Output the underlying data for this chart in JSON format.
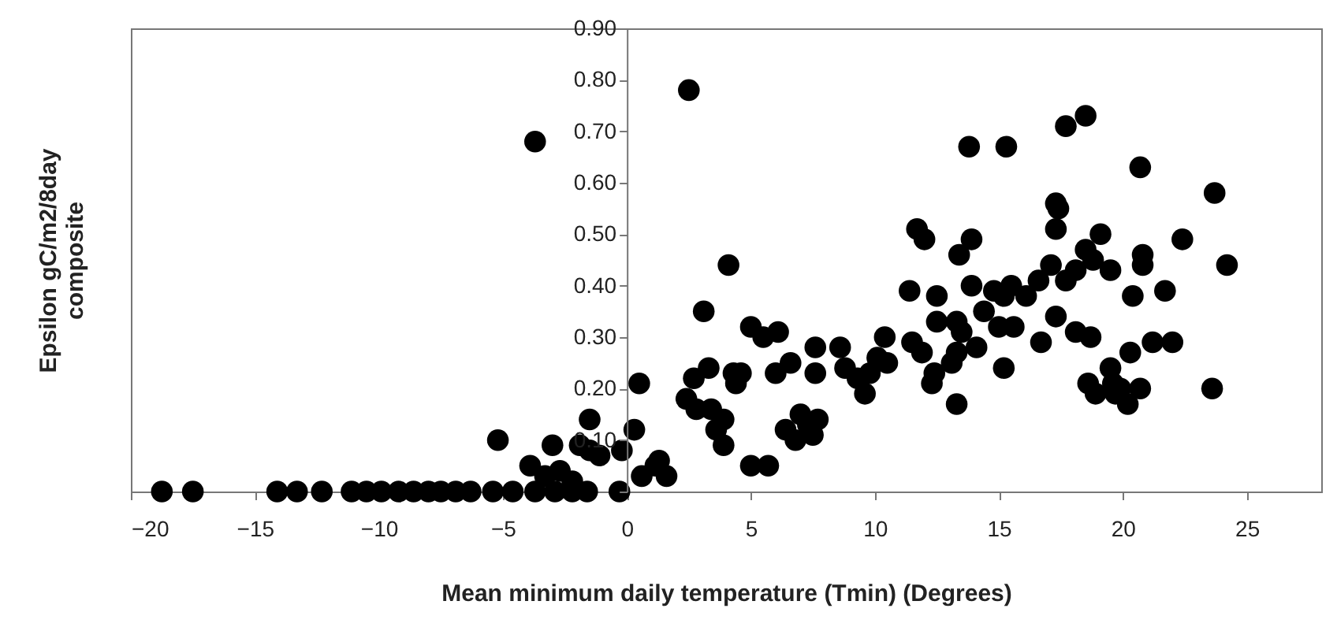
{
  "chart_data": {
    "type": "scatter",
    "xlabel": "Mean minimum daily temperature (Tmin) (Degrees)",
    "ylabel": "Epsilon gC/m2/8day\ncomposite",
    "xlim": [
      -20,
      28
    ],
    "xticks": [
      -20,
      -15,
      -10,
      -5,
      0,
      5,
      10,
      15,
      20,
      25
    ],
    "ylim": [
      0,
      0.9
    ],
    "yticks": [
      {
        "value": 0,
        "label": null
      },
      {
        "value": 0.1,
        "label": "0.10"
      },
      {
        "value": 0.2,
        "label": "0.20"
      },
      {
        "value": 0.3,
        "label": "0.30"
      },
      {
        "value": 0.4,
        "label": "0.40"
      },
      {
        "value": 0.5,
        "label": "0.50"
      },
      {
        "value": 0.6,
        "label": "0.60"
      },
      {
        "value": 0.7,
        "label": "0.70"
      },
      {
        "value": 0.8,
        "label": "0.80"
      },
      {
        "value": 0.9,
        "label": "0.90"
      }
    ],
    "grid": false,
    "marker": "circle",
    "series": [
      {
        "color": "#000000",
        "x": [
          -18.75,
          -17.5,
          -14.1,
          -13.3,
          -12.3,
          -11.1,
          -10.5,
          -9.9,
          -9.2,
          -8.6,
          -8.0,
          -7.5,
          -6.9,
          -6.3,
          -5.4,
          -4.6,
          -3.7,
          -2.9,
          -2.2,
          -1.6,
          -0.3,
          -3.7,
          -5.2,
          -3.9,
          -3.0,
          -3.3,
          -2.7,
          -2.2,
          -1.5,
          -1.9,
          -1.5,
          -1.1,
          -0.2,
          0.3,
          0.5,
          0.6,
          1.3,
          1.6,
          1.15,
          2.5,
          2.4,
          2.7,
          2.8,
          3.1,
          3.3,
          3.4,
          3.6,
          3.9,
          3.9,
          4.1,
          4.3,
          4.4,
          4.6,
          5.0,
          5.7,
          5.0,
          5.5,
          6.1,
          6.0,
          6.6,
          6.4,
          6.8,
          7.0,
          7.3,
          7.5,
          7.7,
          7.6,
          7.6,
          8.6,
          8.8,
          9.3,
          9.6,
          9.8,
          10.1,
          10.4,
          10.5,
          11.4,
          11.7,
          12.0,
          11.5,
          11.9,
          12.5,
          12.5,
          12.4,
          12.3,
          13.1,
          13.3,
          13.4,
          13.5,
          13.3,
          13.3,
          13.8,
          13.9,
          13.9,
          14.1,
          14.4,
          14.8,
          15.0,
          15.2,
          15.3,
          15.2,
          15.5,
          15.6,
          16.1,
          16.6,
          16.7,
          17.1,
          17.3,
          17.3,
          17.4,
          17.3,
          17.7,
          17.7,
          18.1,
          18.1,
          18.5,
          18.5,
          18.8,
          18.7,
          18.6,
          18.9,
          19.1,
          19.5,
          19.5,
          19.6,
          19.7,
          19.9,
          20.2,
          20.3,
          20.4,
          20.7,
          20.8,
          20.8,
          20.7,
          21.2,
          21.7,
          22.0,
          22.4,
          23.7,
          23.6,
          24.2
        ],
        "values": [
          0,
          0,
          0,
          0,
          0,
          0,
          0,
          0,
          0,
          0,
          0,
          0,
          0,
          0,
          0,
          0,
          0,
          0,
          0,
          0,
          0,
          0.68,
          0.1,
          0.05,
          0.09,
          0.03,
          0.04,
          0.02,
          0.14,
          0.09,
          0.08,
          0.07,
          0.08,
          0.12,
          0.21,
          0.03,
          0.06,
          0.03,
          0.05,
          0.78,
          0.18,
          0.22,
          0.16,
          0.35,
          0.24,
          0.16,
          0.12,
          0.14,
          0.09,
          0.44,
          0.23,
          0.21,
          0.23,
          0.05,
          0.05,
          0.32,
          0.3,
          0.31,
          0.23,
          0.25,
          0.12,
          0.1,
          0.15,
          0.13,
          0.11,
          0.14,
          0.28,
          0.23,
          0.28,
          0.24,
          0.22,
          0.19,
          0.23,
          0.26,
          0.3,
          0.25,
          0.39,
          0.51,
          0.49,
          0.29,
          0.27,
          0.38,
          0.33,
          0.23,
          0.21,
          0.25,
          0.33,
          0.46,
          0.31,
          0.17,
          0.27,
          0.67,
          0.49,
          0.4,
          0.28,
          0.35,
          0.39,
          0.32,
          0.24,
          0.67,
          0.38,
          0.4,
          0.32,
          0.38,
          0.41,
          0.29,
          0.44,
          0.34,
          0.56,
          0.55,
          0.51,
          0.71,
          0.41,
          0.43,
          0.31,
          0.73,
          0.47,
          0.45,
          0.3,
          0.21,
          0.19,
          0.5,
          0.43,
          0.24,
          0.21,
          0.19,
          0.2,
          0.17,
          0.27,
          0.38,
          0.63,
          0.46,
          0.44,
          0.2,
          0.29,
          0.39,
          0.29,
          0.49,
          0.58,
          0.2,
          0.44
        ]
      }
    ]
  }
}
